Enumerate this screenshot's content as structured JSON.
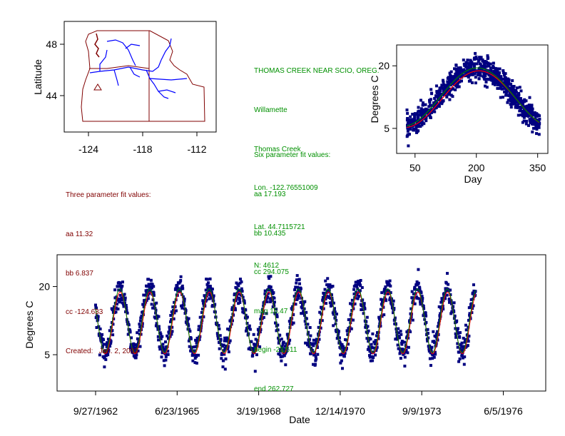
{
  "colors": {
    "points": "#000080",
    "fit_six": "#008000",
    "fit_three": "#ff0000",
    "info_green": "#009000",
    "info_maroon": "#800000",
    "map_border": "#800000",
    "map_rivers": "#0000ff"
  },
  "map": {
    "ylabel": "Latitude",
    "yticks": [
      "48",
      "44"
    ],
    "xticks": [
      "-124",
      "-118",
      "-112"
    ],
    "site_marker": "triangle"
  },
  "station_info": [
    "THOMAS CREEK NEAR SCIO, OREG.",
    "Willamette",
    "Thomas Creek",
    "Lon. -122.76551009",
    "Lat. 44.7115721",
    "N: 4612"
  ],
  "six_param": [
    "Six parameter fit values:",
    "aa 17.193",
    "bb 10.435",
    "cc 294.075",
    "mag 15.47",
    "begin -23.511",
    "end 262.727"
  ],
  "three_param": [
    "Three parameter fit values:",
    "aa 11.32",
    "bb 6.837",
    "cc -124.633",
    "Created:   Jan. 2, 2002"
  ],
  "chart_data": [
    {
      "type": "scatter",
      "xlabel": "Day",
      "ylabel": "Degrees C",
      "xticks": [
        50,
        200,
        350
      ],
      "yticks": [
        5,
        20
      ],
      "xlim": [
        5,
        375
      ],
      "ylim": [
        -1,
        25
      ],
      "x_range_of_points": [
        30,
        355
      ],
      "series": [
        {
          "kind": "observations",
          "approx_min_day": 30,
          "approx_max_day": 355
        },
        {
          "kind": "six-parameter fit",
          "peak_day": 200,
          "peak_value": 19.5,
          "trough_value": 5.5
        },
        {
          "kind": "three-parameter fit",
          "peak_day": 205,
          "peak_value": 18.5,
          "trough_value": 4.5
        }
      ]
    },
    {
      "type": "scatter",
      "xlabel": "Date",
      "ylabel": "Degrees C",
      "xticks": [
        "9/27/1962",
        "6/23/1965",
        "3/19/1968",
        "12/14/1970",
        "9/9/1973",
        "6/5/1976"
      ],
      "yticks": [
        5,
        20
      ],
      "ylim": [
        -3,
        27
      ],
      "x_range_of_points": [
        "9/27/1962",
        "7/1975"
      ],
      "series": [
        {
          "kind": "observations"
        },
        {
          "kind": "six-parameter fit"
        },
        {
          "kind": "three-parameter fit"
        }
      ]
    }
  ]
}
